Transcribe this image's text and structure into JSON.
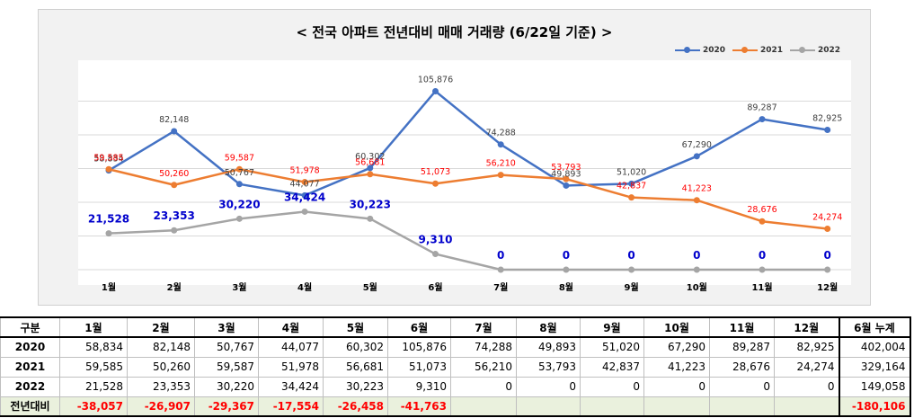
{
  "chart_data": {
    "type": "line",
    "title": "< 전국 아파트 전년대비 매매 거래량 (6/22일 기준) >",
    "categories": [
      "1월",
      "2월",
      "3월",
      "4월",
      "5월",
      "6월",
      "7월",
      "8월",
      "9월",
      "10월",
      "11월",
      "12월"
    ],
    "series": [
      {
        "name": "2020",
        "color": "#4472c4",
        "values": [
          58834,
          82148,
          50767,
          44077,
          60302,
          105876,
          74288,
          49893,
          51020,
          67290,
          89287,
          82925
        ],
        "labels": [
          "58,834",
          "82,148",
          "50,767",
          "44,077",
          "60,302",
          "105,876",
          "74,288",
          "49,893",
          "51,020",
          "67,290",
          "89,287",
          "82,925"
        ]
      },
      {
        "name": "2021",
        "color": "#ed7d31",
        "values": [
          59585,
          50260,
          59587,
          51978,
          56681,
          51073,
          56210,
          53793,
          42837,
          41223,
          28676,
          24274
        ],
        "labels": [
          "59,585",
          "50,260",
          "59,587",
          "51,978",
          "56,681",
          "51,073",
          "56,210",
          "53,793",
          "42,837",
          "41,223",
          "28,676",
          "24,274"
        ]
      },
      {
        "name": "2022",
        "color": "#a5a5a5",
        "values": [
          21528,
          23353,
          30220,
          34424,
          30223,
          9310,
          0,
          0,
          0,
          0,
          0,
          0
        ],
        "labels": [
          "21,528",
          "23,353",
          "30,220",
          "34,424",
          "30,223",
          "9,310",
          "0",
          "0",
          "0",
          "0",
          "0",
          "0"
        ]
      }
    ],
    "ylim": [
      0,
      120000
    ],
    "grid": true,
    "legend": "top-right",
    "label_colors": {
      "2020": "#404040",
      "2021": "#ff0000",
      "2022": "#0000cc"
    }
  },
  "table": {
    "corner": "구분",
    "months": [
      "1월",
      "2월",
      "3월",
      "4월",
      "5월",
      "6월",
      "7월",
      "8월",
      "9월",
      "10월",
      "11월",
      "12월"
    ],
    "total_header": "6월 누계",
    "rows": [
      {
        "label": "2020",
        "cells": [
          "58,834",
          "82,148",
          "50,767",
          "44,077",
          "60,302",
          "105,876",
          "74,288",
          "49,893",
          "51,020",
          "67,290",
          "89,287",
          "82,925"
        ],
        "total": "402,004"
      },
      {
        "label": "2021",
        "cells": [
          "59,585",
          "50,260",
          "59,587",
          "51,978",
          "56,681",
          "51,073",
          "56,210",
          "53,793",
          "42,837",
          "41,223",
          "28,676",
          "24,274"
        ],
        "total": "329,164"
      },
      {
        "label": "2022",
        "cells": [
          "21,528",
          "23,353",
          "30,220",
          "34,424",
          "30,223",
          "9,310",
          "0",
          "0",
          "0",
          "0",
          "0",
          "0"
        ],
        "total": "149,058"
      }
    ],
    "diff_row": {
      "label": "전년대비",
      "cells": [
        "-38,057",
        "-26,907",
        "-29,367",
        "-17,554",
        "-26,458",
        "-41,763",
        "",
        "",
        "",
        "",
        "",
        ""
      ],
      "total": "-180,106"
    }
  }
}
